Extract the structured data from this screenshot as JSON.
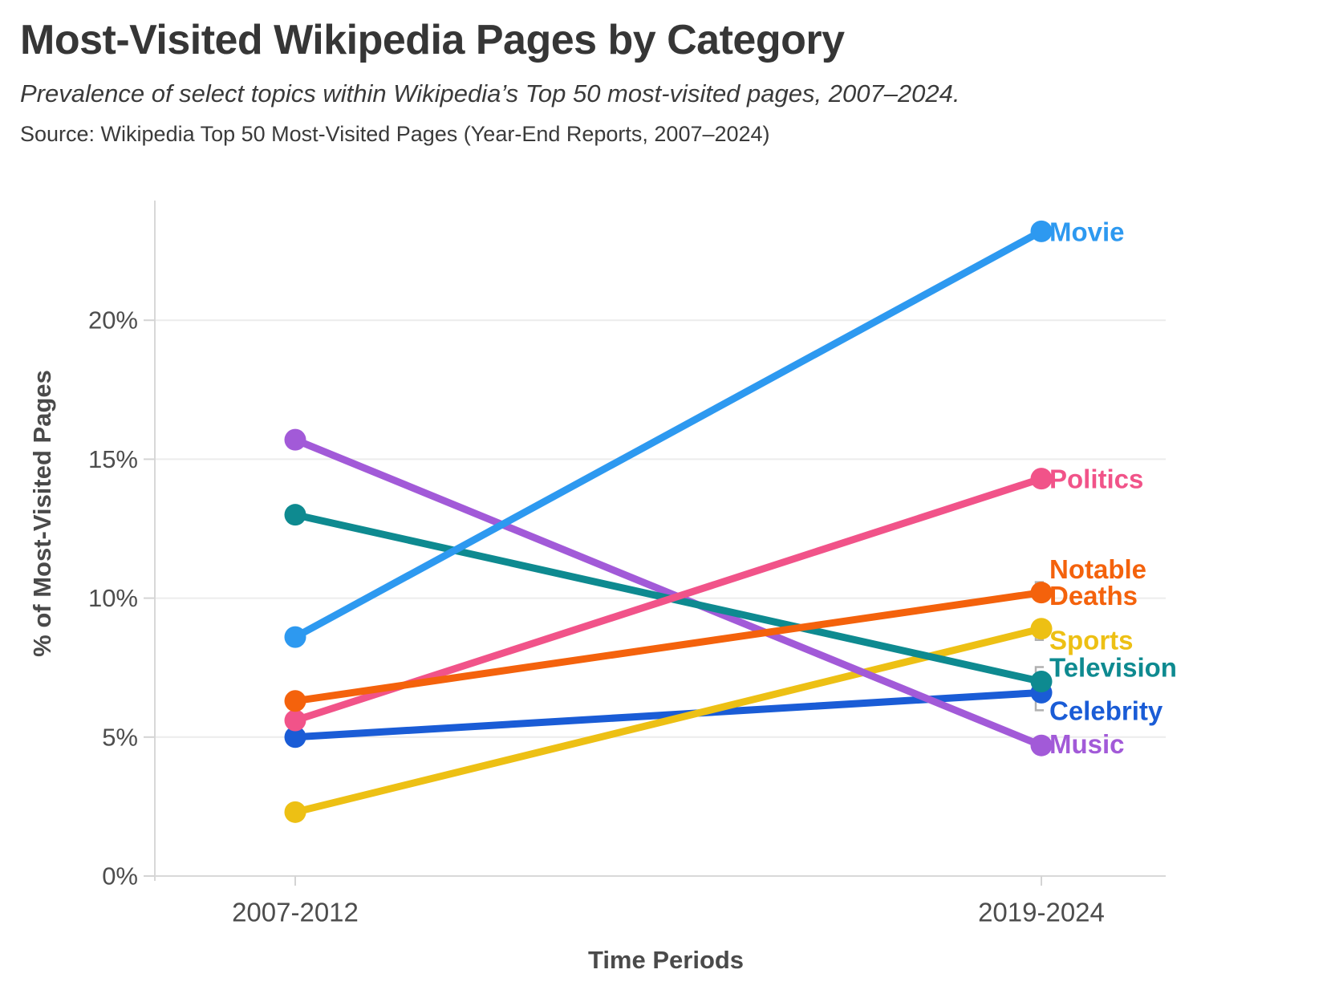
{
  "header": {
    "title": "Most-Visited Wikipedia Pages by Category",
    "subtitle": "Prevalence of select topics within Wikipedia’s Top 50 most-visited pages, 2007–2024.",
    "source": "Source: Wikipedia Top 50 Most-Visited Pages (Year-End Reports, 2007–2024)"
  },
  "chart_data": {
    "type": "line",
    "variant": "slope",
    "title": "Most-Visited Wikipedia Pages by Category",
    "categories": [
      "2007-2012",
      "2019-2024"
    ],
    "xlabel": "Time Periods",
    "ylabel": "% of Most-Visited Pages",
    "ylim": [
      0,
      24.3
    ],
    "yticks": [
      0,
      5,
      10,
      15,
      20
    ],
    "ytick_labels": [
      "0%",
      "5%",
      "10%",
      "15%",
      "20%"
    ],
    "grid": true,
    "legend_position": "right-of-last-point",
    "series": [
      {
        "name": "Movie",
        "label_lines": [
          "Movie"
        ],
        "color": "#2D99F0",
        "values": [
          8.6,
          23.2
        ],
        "label_offset": 0
      },
      {
        "name": "Politics",
        "label_lines": [
          "Politics"
        ],
        "color": "#F15389",
        "values": [
          5.6,
          14.3
        ],
        "label_offset": 0
      },
      {
        "name": "Notable Deaths",
        "label_lines": [
          "Notable",
          "Deaths"
        ],
        "color": "#F4620C",
        "values": [
          6.3,
          10.2
        ],
        "label_offset": -13
      },
      {
        "name": "Sports",
        "label_lines": [
          "Sports"
        ],
        "color": "#EDC014",
        "values": [
          2.3,
          8.9
        ],
        "label_offset": 14
      },
      {
        "name": "Television",
        "label_lines": [
          "Television"
        ],
        "color": "#0E8A90",
        "values": [
          13.0,
          7.0
        ],
        "label_offset": -18
      },
      {
        "name": "Celebrity",
        "label_lines": [
          "Celebrity"
        ],
        "color": "#1A5CD6",
        "values": [
          5.0,
          6.6
        ],
        "label_offset": 22
      },
      {
        "name": "Music",
        "label_lines": [
          "Music"
        ],
        "color": "#A25AD8",
        "values": [
          15.7,
          4.7
        ],
        "label_offset": -2
      }
    ],
    "draw_order": [
      "Celebrity",
      "Sports",
      "Music",
      "Television",
      "Politics",
      "Notable Deaths",
      "Movie"
    ],
    "style": {
      "grid_color": "#ECECEC",
      "axis_color": "#D8D8D8",
      "tick_color": "#D4D4D4",
      "leader_color": "#B0B0B0",
      "tick_text_color": "#4D4D4D",
      "axis_title_color": "#4A4A4A"
    }
  }
}
